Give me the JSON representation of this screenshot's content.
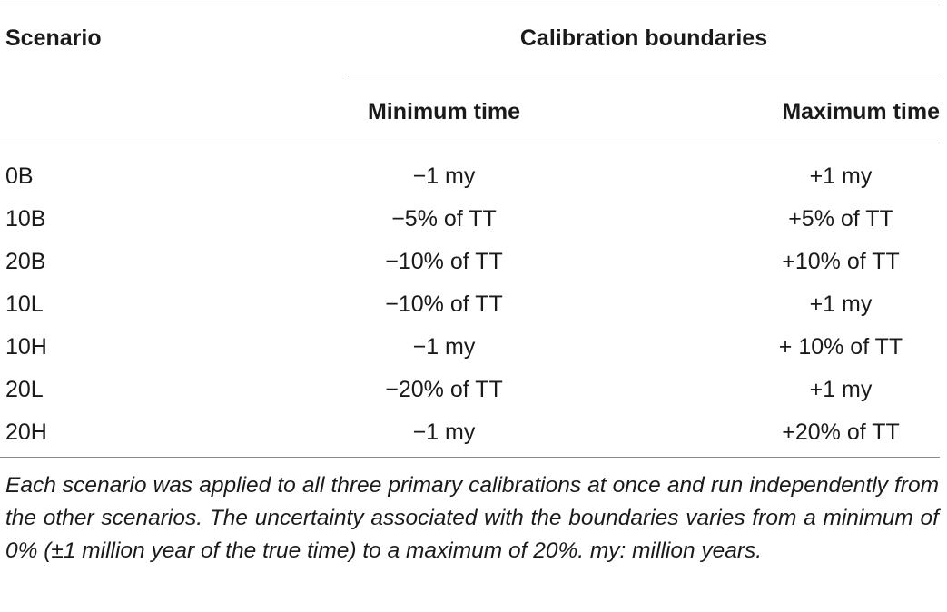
{
  "table": {
    "headers": {
      "scenario": "Scenario",
      "group": "Calibration boundaries",
      "min": "Minimum time",
      "max": "Maximum time"
    },
    "rows": [
      {
        "scenario": "0B",
        "min": "−1 my",
        "max": "+1 my"
      },
      {
        "scenario": "10B",
        "min": "−5% of TT",
        "max": "+5% of TT"
      },
      {
        "scenario": "20B",
        "min": "−10% of TT",
        "max": "+10% of TT"
      },
      {
        "scenario": "10L",
        "min": "−10% of TT",
        "max": "+1 my"
      },
      {
        "scenario": "10H",
        "min": "−1 my",
        "max": "+ 10% of TT"
      },
      {
        "scenario": "20L",
        "min": "−20% of TT",
        "max": "+1 my"
      },
      {
        "scenario": "20H",
        "min": "−1 my",
        "max": "+20% of TT"
      }
    ],
    "footnote": "Each scenario was applied to all three primary calibrations at once and run independently from the other scenarios. The uncertainty associated with the boundaries varies from a minimum of 0% (±1 million year of the true time) to a maximum of 20%. my: million years."
  }
}
